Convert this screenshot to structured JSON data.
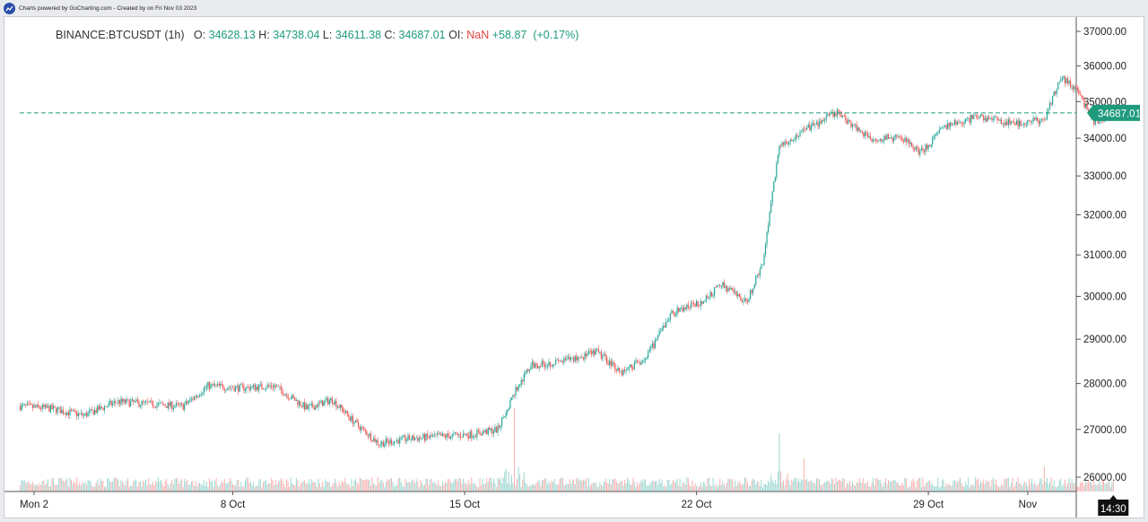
{
  "header": {
    "credit": "Charts powered by GoCharting.com - Created by  on Fri Nov 03 2023",
    "logo_icon": "chart-line-icon"
  },
  "legend": {
    "symbol": "BINANCE:BTCUSDT (1h)",
    "o_label": "O:",
    "o": "34628.13",
    "h_label": "H:",
    "h": "34738.04",
    "l_label": "L:",
    "l": "34611.38",
    "c_label": "C:",
    "c": "34687.01",
    "oi_label": "OI:",
    "oi": "NaN",
    "change": "+58.87",
    "change_pct": "(+0.17%)"
  },
  "colors": {
    "up": "#26a69a",
    "down": "#ef5350",
    "last_price": "#1e9a7d"
  },
  "chart_data": {
    "type": "candlestick",
    "interval": "1h",
    "y_scale": "log",
    "ylim": [
      26000,
      37000
    ],
    "y_ticks": [
      "26000.00",
      "27000.00",
      "28000.00",
      "29000.00",
      "30000.00",
      "31000.00",
      "32000.00",
      "33000.00",
      "34000.00",
      "35000.00",
      "36000.00",
      "37000.00"
    ],
    "x_ticks": [
      {
        "t": "2023-10-02T00",
        "label": "Mon 2"
      },
      {
        "t": "2023-10-08T00",
        "label": "8 Oct"
      },
      {
        "t": "2023-10-15T00",
        "label": "15 Oct"
      },
      {
        "t": "2023-10-22T00",
        "label": "22 Oct"
      },
      {
        "t": "2023-10-29T00",
        "label": "29 Oct"
      },
      {
        "t": "2023-11-01T00",
        "label": "Nov"
      }
    ],
    "last_price": "34687.01",
    "crosshair_time": "14:30",
    "close_path": [
      [
        "2023-10-01T14",
        27500
      ],
      [
        "2023-10-02T12",
        27450
      ],
      [
        "2023-10-03T12",
        27300
      ],
      [
        "2023-10-04T12",
        27600
      ],
      [
        "2023-10-05T12",
        27550
      ],
      [
        "2023-10-06T12",
        27500
      ],
      [
        "2023-10-07T06",
        27950
      ],
      [
        "2023-10-08T06",
        27900
      ],
      [
        "2023-10-09T06",
        27950
      ],
      [
        "2023-10-10T06",
        27450
      ],
      [
        "2023-10-11T00",
        27650
      ],
      [
        "2023-10-11T18",
        27100
      ],
      [
        "2023-10-12T10",
        26700
      ],
      [
        "2023-10-13T06",
        26800
      ],
      [
        "2023-10-14T06",
        26850
      ],
      [
        "2023-10-15T06",
        26900
      ],
      [
        "2023-10-16T00",
        27000
      ],
      [
        "2023-10-16T12",
        27800
      ],
      [
        "2023-10-17T00",
        28400
      ],
      [
        "2023-10-18T00",
        28500
      ],
      [
        "2023-10-19T00",
        28700
      ],
      [
        "2023-10-19T18",
        28250
      ],
      [
        "2023-10-20T12",
        28600
      ],
      [
        "2023-10-21T06",
        29600
      ],
      [
        "2023-10-22T06",
        29900
      ],
      [
        "2023-10-22T18",
        30300
      ],
      [
        "2023-10-23T12",
        29850
      ],
      [
        "2023-10-24T00",
        30800
      ],
      [
        "2023-10-24T12",
        33800
      ],
      [
        "2023-10-25T06",
        34200
      ],
      [
        "2023-10-26T06",
        34700
      ],
      [
        "2023-10-27T06",
        34000
      ],
      [
        "2023-10-28T06",
        34000
      ],
      [
        "2023-10-28T18",
        33600
      ],
      [
        "2023-10-29T12",
        34300
      ],
      [
        "2023-10-30T12",
        34600
      ],
      [
        "2023-10-31T12",
        34400
      ],
      [
        "2023-11-01T12",
        34500
      ],
      [
        "2023-11-02T00",
        35700
      ],
      [
        "2023-11-02T12",
        35300
      ],
      [
        "2023-11-03T00",
        34400
      ],
      [
        "2023-11-03T14",
        34687.01
      ]
    ],
    "volume_spikes": [
      [
        "2023-10-16T12",
        1.0
      ],
      [
        "2023-10-24T12",
        0.7
      ],
      [
        "2023-10-25T06",
        0.4
      ],
      [
        "2023-11-01T12",
        0.3
      ]
    ]
  }
}
